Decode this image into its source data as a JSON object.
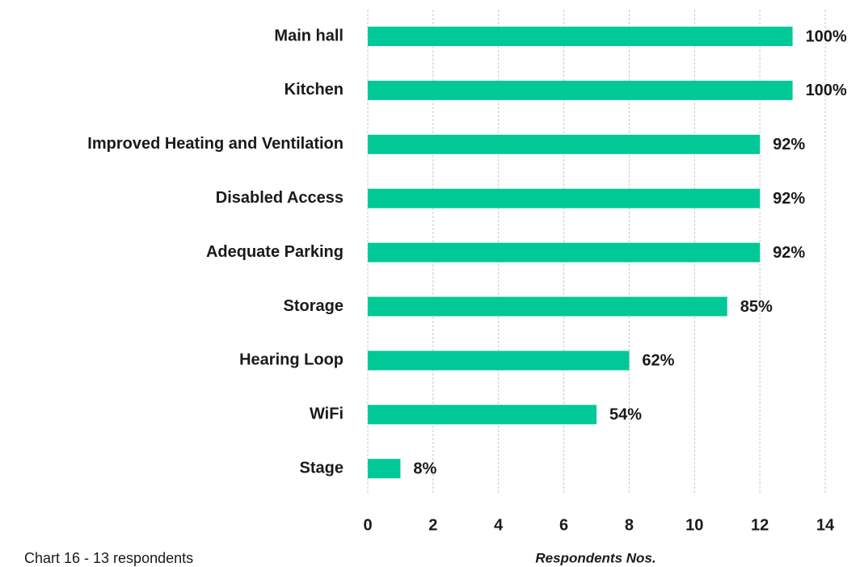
{
  "chart_data": {
    "type": "barh",
    "categories": [
      "Main hall",
      "Kitchen",
      "Improved Heating and Ventilation",
      "Disabled Access",
      "Adequate Parking",
      "Storage",
      "Hearing Loop",
      "WiFi",
      "Stage"
    ],
    "values": [
      13,
      13,
      12,
      12,
      12,
      11,
      8,
      7,
      1
    ],
    "value_labels": [
      "100%",
      "100%",
      "92%",
      "92%",
      "92%",
      "85%",
      "62%",
      "54%",
      "8%"
    ],
    "color": "#00c896",
    "xlim": [
      0,
      14
    ],
    "xticks": [
      0,
      2,
      4,
      6,
      8,
      10,
      12,
      14
    ],
    "grid": true,
    "xlabel": "Respondents Nos.",
    "note": "Chart 16  - 13  respondents"
  }
}
